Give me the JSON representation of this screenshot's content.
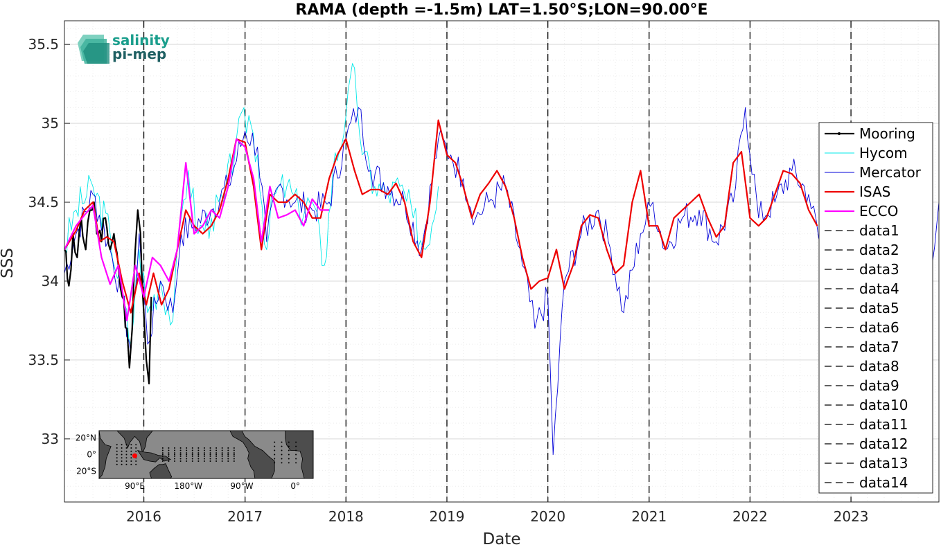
{
  "chart_data": {
    "type": "line",
    "title": "RAMA (depth =-1.5m) LAT=1.50°S;LON=90.00°E",
    "xlabel": "Date",
    "ylabel": "SSS",
    "xlim": [
      "2015-03-20",
      "2023-11-15"
    ],
    "ylim": [
      32.6,
      35.65
    ],
    "x_ticks": [
      "2016",
      "2017",
      "2018",
      "2019",
      "2020",
      "2021",
      "2022",
      "2023"
    ],
    "y_ticks": [
      "33",
      "33.5",
      "34",
      "34.5",
      "35",
      "35.5"
    ],
    "grid": true,
    "minor_grid": true,
    "legend_position": "right",
    "vertical_dashed_lines": [
      "2016-01-01",
      "2017-01-01",
      "2018-01-01",
      "2019-01-01",
      "2020-01-01",
      "2021-01-01",
      "2022-01-01",
      "2023-01-01"
    ],
    "series": [
      {
        "name": "Mooring",
        "color": "#000000",
        "points": [
          [
            "2015-03-20",
            34.2
          ],
          [
            "2015-04-05",
            33.97
          ],
          [
            "2015-04-20",
            34.3
          ],
          [
            "2015-05-05",
            34.15
          ],
          [
            "2015-05-20",
            34.4
          ],
          [
            "2015-06-05",
            34.2
          ],
          [
            "2015-06-20",
            34.45
          ],
          [
            "2015-07-05",
            34.5
          ],
          [
            "2015-07-15",
            34.3
          ],
          [
            "2015-08-01",
            34.25
          ],
          [
            "2015-08-15",
            34.4
          ],
          [
            "2015-09-01",
            34.2
          ],
          [
            "2015-09-15",
            34.3
          ],
          [
            "2015-10-01",
            34.1
          ],
          [
            "2015-10-15",
            33.9
          ],
          [
            "2015-11-01",
            33.7
          ],
          [
            "2015-11-10",
            33.45
          ],
          [
            "2015-11-20",
            33.7
          ],
          [
            "2015-12-01",
            34.2
          ],
          [
            "2015-12-10",
            34.45
          ],
          [
            "2015-12-20",
            34.3
          ],
          [
            "2016-01-01",
            33.8
          ],
          [
            "2016-01-10",
            33.5
          ],
          [
            "2016-01-20",
            33.35
          ],
          [
            "2016-01-28",
            33.9
          ]
        ]
      },
      {
        "name": "Hycom",
        "color": "#00e8e8",
        "points": [
          [
            "2015-03-20",
            34.2
          ],
          [
            "2015-05-01",
            34.45
          ],
          [
            "2015-07-01",
            34.6
          ],
          [
            "2015-09-01",
            34.3
          ],
          [
            "2015-10-15",
            33.9
          ],
          [
            "2015-11-15",
            33.6
          ],
          [
            "2015-12-15",
            34.2
          ],
          [
            "2016-01-15",
            33.8
          ],
          [
            "2016-03-01",
            34.0
          ],
          [
            "2016-04-15",
            33.75
          ],
          [
            "2016-05-15",
            34.4
          ],
          [
            "2016-06-10",
            34.7
          ],
          [
            "2016-07-15",
            34.3
          ],
          [
            "2016-09-01",
            34.4
          ],
          [
            "2016-10-15",
            34.5
          ],
          [
            "2016-12-01",
            34.9
          ],
          [
            "2017-01-15",
            35.05
          ],
          [
            "2017-02-15",
            34.8
          ],
          [
            "2017-03-20",
            34.2
          ],
          [
            "2017-04-15",
            34.55
          ],
          [
            "2017-06-01",
            34.6
          ],
          [
            "2017-07-15",
            34.45
          ],
          [
            "2017-09-01",
            34.5
          ],
          [
            "2017-10-15",
            34.1
          ],
          [
            "2017-11-15",
            34.7
          ],
          [
            "2018-01-01",
            35.05
          ],
          [
            "2018-02-01",
            35.35
          ],
          [
            "2018-03-01",
            34.8
          ],
          [
            "2018-04-15",
            34.6
          ],
          [
            "2018-06-01",
            34.55
          ],
          [
            "2018-07-15",
            34.6
          ],
          [
            "2018-09-01",
            34.4
          ],
          [
            "2018-10-15",
            34.2
          ],
          [
            "2018-12-01",
            34.6
          ]
        ]
      },
      {
        "name": "Mercator",
        "color": "#0000d8",
        "points": [
          [
            "2015-03-20",
            34.05
          ],
          [
            "2015-05-01",
            34.3
          ],
          [
            "2015-07-01",
            34.55
          ],
          [
            "2015-09-01",
            34.2
          ],
          [
            "2015-10-15",
            33.9
          ],
          [
            "2015-11-15",
            33.55
          ],
          [
            "2015-12-15",
            34.3
          ],
          [
            "2016-01-15",
            33.6
          ],
          [
            "2016-03-01",
            34.0
          ],
          [
            "2016-04-15",
            33.8
          ],
          [
            "2016-05-15",
            34.3
          ],
          [
            "2016-07-01",
            34.35
          ],
          [
            "2016-09-01",
            34.45
          ],
          [
            "2016-11-01",
            34.6
          ],
          [
            "2017-01-01",
            34.95
          ],
          [
            "2017-02-15",
            34.85
          ],
          [
            "2017-03-20",
            34.25
          ],
          [
            "2017-05-01",
            34.6
          ],
          [
            "2017-07-01",
            34.5
          ],
          [
            "2017-09-01",
            34.45
          ],
          [
            "2017-11-01",
            34.5
          ],
          [
            "2018-01-01",
            34.9
          ],
          [
            "2018-02-15",
            35.1
          ],
          [
            "2018-04-01",
            34.7
          ],
          [
            "2018-06-01",
            34.6
          ],
          [
            "2018-08-01",
            34.5
          ],
          [
            "2018-10-01",
            34.2
          ],
          [
            "2018-12-01",
            34.9
          ],
          [
            "2019-01-15",
            34.8
          ],
          [
            "2019-03-01",
            34.65
          ],
          [
            "2019-04-15",
            34.4
          ],
          [
            "2019-06-01",
            34.5
          ],
          [
            "2019-08-01",
            34.6
          ],
          [
            "2019-10-01",
            34.1
          ],
          [
            "2019-11-15",
            33.7
          ],
          [
            "2020-01-01",
            33.9
          ],
          [
            "2020-01-20",
            32.9
          ],
          [
            "2020-03-01",
            34.0
          ],
          [
            "2020-05-01",
            34.3
          ],
          [
            "2020-07-01",
            34.45
          ],
          [
            "2020-08-15",
            34.2
          ],
          [
            "2020-10-01",
            33.8
          ],
          [
            "2020-12-01",
            34.3
          ],
          [
            "2021-01-15",
            34.5
          ],
          [
            "2021-03-01",
            34.2
          ],
          [
            "2021-05-01",
            34.4
          ],
          [
            "2021-07-01",
            34.45
          ],
          [
            "2021-09-01",
            34.25
          ],
          [
            "2021-11-01",
            34.5
          ],
          [
            "2021-12-15",
            35.1
          ],
          [
            "2022-02-01",
            34.4
          ],
          [
            "2022-04-01",
            34.5
          ],
          [
            "2022-06-01",
            34.7
          ],
          [
            "2022-08-01",
            34.55
          ],
          [
            "2022-09-15",
            34.2
          ],
          [
            "2022-11-01",
            34.5
          ],
          [
            "2023-01-01",
            34.6
          ],
          [
            "2023-03-01",
            34.4
          ],
          [
            "2023-05-15",
            34.5
          ],
          [
            "2023-07-01",
            34.6
          ],
          [
            "2023-09-01",
            34.3
          ],
          [
            "2023-10-15",
            34.1
          ],
          [
            "2023-11-15",
            34.5
          ]
        ]
      },
      {
        "name": "ISAS",
        "color": "#ee0000",
        "points": [
          [
            "2015-03-20",
            34.2
          ],
          [
            "2015-05-01",
            34.32
          ],
          [
            "2015-06-01",
            34.45
          ],
          [
            "2015-07-01",
            34.5
          ],
          [
            "2015-07-25",
            34.25
          ],
          [
            "2015-08-20",
            34.28
          ],
          [
            "2015-09-15",
            34.25
          ],
          [
            "2015-10-15",
            34.0
          ],
          [
            "2015-11-15",
            33.8
          ],
          [
            "2015-12-15",
            34.05
          ],
          [
            "2016-01-10",
            33.85
          ],
          [
            "2016-02-05",
            34.05
          ],
          [
            "2016-03-05",
            33.85
          ],
          [
            "2016-04-01",
            33.95
          ],
          [
            "2016-05-01",
            34.2
          ],
          [
            "2016-06-01",
            34.45
          ],
          [
            "2016-07-01",
            34.35
          ],
          [
            "2016-08-01",
            34.3
          ],
          [
            "2016-09-01",
            34.35
          ],
          [
            "2016-10-01",
            34.45
          ],
          [
            "2016-11-01",
            34.65
          ],
          [
            "2016-12-01",
            34.9
          ],
          [
            "2017-01-01",
            34.88
          ],
          [
            "2017-02-01",
            34.6
          ],
          [
            "2017-03-01",
            34.2
          ],
          [
            "2017-04-01",
            34.55
          ],
          [
            "2017-05-01",
            34.5
          ],
          [
            "2017-06-01",
            34.5
          ],
          [
            "2017-07-01",
            34.55
          ],
          [
            "2017-08-01",
            34.5
          ],
          [
            "2017-09-01",
            34.4
          ],
          [
            "2017-10-01",
            34.4
          ],
          [
            "2017-11-01",
            34.65
          ],
          [
            "2017-12-01",
            34.8
          ],
          [
            "2018-01-01",
            34.9
          ],
          [
            "2018-02-01",
            34.7
          ],
          [
            "2018-03-01",
            34.55
          ],
          [
            "2018-04-01",
            34.58
          ],
          [
            "2018-05-01",
            34.58
          ],
          [
            "2018-06-01",
            34.55
          ],
          [
            "2018-07-01",
            34.62
          ],
          [
            "2018-08-01",
            34.5
          ],
          [
            "2018-09-01",
            34.25
          ],
          [
            "2018-10-01",
            34.15
          ],
          [
            "2018-11-01",
            34.5
          ],
          [
            "2018-12-01",
            35.02
          ],
          [
            "2019-01-01",
            34.8
          ],
          [
            "2019-02-01",
            34.75
          ],
          [
            "2019-03-01",
            34.6
          ],
          [
            "2019-04-01",
            34.4
          ],
          [
            "2019-05-01",
            34.55
          ],
          [
            "2019-06-01",
            34.62
          ],
          [
            "2019-07-01",
            34.7
          ],
          [
            "2019-08-01",
            34.6
          ],
          [
            "2019-09-01",
            34.4
          ],
          [
            "2019-10-01",
            34.15
          ],
          [
            "2019-11-01",
            33.95
          ],
          [
            "2019-12-01",
            34.0
          ],
          [
            "2020-01-01",
            34.02
          ],
          [
            "2020-02-01",
            34.2
          ],
          [
            "2020-03-01",
            33.95
          ],
          [
            "2020-04-01",
            34.1
          ],
          [
            "2020-05-01",
            34.35
          ],
          [
            "2020-06-01",
            34.42
          ],
          [
            "2020-07-01",
            34.4
          ],
          [
            "2020-08-01",
            34.2
          ],
          [
            "2020-09-01",
            34.05
          ],
          [
            "2020-10-01",
            34.1
          ],
          [
            "2020-11-01",
            34.5
          ],
          [
            "2020-12-01",
            34.7
          ],
          [
            "2021-01-01",
            34.35
          ],
          [
            "2021-02-01",
            34.35
          ],
          [
            "2021-03-01",
            34.2
          ],
          [
            "2021-04-01",
            34.4
          ],
          [
            "2021-05-01",
            34.45
          ],
          [
            "2021-06-01",
            34.5
          ],
          [
            "2021-07-01",
            34.55
          ],
          [
            "2021-08-01",
            34.4
          ],
          [
            "2021-09-01",
            34.28
          ],
          [
            "2021-10-01",
            34.35
          ],
          [
            "2021-11-01",
            34.75
          ],
          [
            "2021-12-01",
            34.82
          ],
          [
            "2022-01-01",
            34.4
          ],
          [
            "2022-02-01",
            34.35
          ],
          [
            "2022-03-01",
            34.4
          ],
          [
            "2022-04-01",
            34.55
          ],
          [
            "2022-05-01",
            34.7
          ],
          [
            "2022-06-01",
            34.68
          ],
          [
            "2022-07-01",
            34.62
          ],
          [
            "2022-08-01",
            34.45
          ],
          [
            "2022-09-01",
            34.35
          ]
        ]
      },
      {
        "name": "ECCO",
        "color": "#ff00ff",
        "points": [
          [
            "2015-03-20",
            34.2
          ],
          [
            "2015-05-01",
            34.35
          ],
          [
            "2015-06-01",
            34.42
          ],
          [
            "2015-07-01",
            34.48
          ],
          [
            "2015-08-01",
            34.15
          ],
          [
            "2015-09-01",
            33.98
          ],
          [
            "2015-10-01",
            34.1
          ],
          [
            "2015-11-01",
            33.75
          ],
          [
            "2015-12-01",
            34.1
          ],
          [
            "2016-01-01",
            33.9
          ],
          [
            "2016-02-01",
            34.15
          ],
          [
            "2016-03-01",
            34.1
          ],
          [
            "2016-04-01",
            34.0
          ],
          [
            "2016-05-01",
            34.2
          ],
          [
            "2016-06-01",
            34.75
          ],
          [
            "2016-07-01",
            34.3
          ],
          [
            "2016-08-01",
            34.35
          ],
          [
            "2016-09-01",
            34.45
          ],
          [
            "2016-10-01",
            34.4
          ],
          [
            "2016-11-01",
            34.6
          ],
          [
            "2016-12-01",
            34.9
          ],
          [
            "2017-01-01",
            34.85
          ],
          [
            "2017-02-01",
            34.65
          ],
          [
            "2017-03-01",
            34.25
          ],
          [
            "2017-04-01",
            34.6
          ],
          [
            "2017-05-01",
            34.4
          ],
          [
            "2017-06-01",
            34.42
          ],
          [
            "2017-07-01",
            34.45
          ],
          [
            "2017-08-01",
            34.35
          ],
          [
            "2017-09-01",
            34.52
          ],
          [
            "2017-10-01",
            34.45
          ],
          [
            "2017-11-01",
            34.45
          ]
        ]
      },
      {
        "name": "data1",
        "color": "#000000",
        "points": []
      },
      {
        "name": "data2",
        "color": "#000000",
        "points": []
      },
      {
        "name": "data3",
        "color": "#000000",
        "points": []
      },
      {
        "name": "data4",
        "color": "#000000",
        "points": []
      },
      {
        "name": "data5",
        "color": "#000000",
        "points": []
      },
      {
        "name": "data6",
        "color": "#000000",
        "points": []
      },
      {
        "name": "data7",
        "color": "#000000",
        "points": []
      },
      {
        "name": "data8",
        "color": "#000000",
        "points": []
      },
      {
        "name": "data9",
        "color": "#000000",
        "points": []
      },
      {
        "name": "data10",
        "color": "#000000",
        "points": []
      },
      {
        "name": "data11",
        "color": "#000000",
        "points": []
      },
      {
        "name": "data12",
        "color": "#000000",
        "points": []
      },
      {
        "name": "data13",
        "color": "#000000",
        "points": []
      },
      {
        "name": "data14",
        "color": "#000000",
        "points": []
      }
    ]
  },
  "logo": {
    "line1": "salinity",
    "line2": "pi-mep"
  },
  "inset_map": {
    "lat_labels": [
      "20°N",
      "0°",
      "20°S"
    ],
    "lon_labels": [
      "90°E",
      "180°W",
      "90°W",
      "0°"
    ],
    "marker_lat": -1.5,
    "marker_lon": 90.0,
    "marker_color": "#ff0000"
  }
}
